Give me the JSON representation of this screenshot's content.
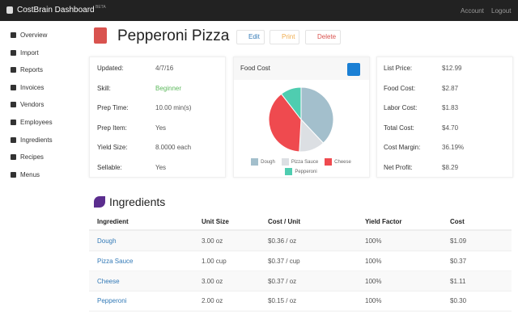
{
  "navbar": {
    "brand": "CostBrain Dashboard",
    "badge": "BETA",
    "links": [
      "Account",
      "Logout"
    ]
  },
  "sidebar": [
    "Overview",
    "Import",
    "Reports",
    "Invoices",
    "Vendors",
    "Employees",
    "Ingredients",
    "Recipes",
    "Menus"
  ],
  "header": {
    "title": "Pepperoni Pizza",
    "actions": [
      "Edit",
      "Print",
      "Delete"
    ]
  },
  "details": [
    [
      "Updated:",
      "4/7/16"
    ],
    [
      "Skill:",
      "Beginner"
    ],
    [
      "Prep Time:",
      "10.00 min(s)"
    ],
    [
      "Prep Item:",
      "Yes"
    ],
    [
      "Yield Size:",
      "8.0000 each"
    ],
    [
      "Sellable:",
      "Yes"
    ]
  ],
  "food_cost_chart": {
    "type": "pie",
    "title": "Food Cost",
    "categories": [
      "Dough",
      "Pizza Sauce",
      "Cheese",
      "Pepperoni"
    ],
    "values": [
      1.09,
      0.37,
      1.11,
      0.3
    ],
    "colors": [
      "#a3bfcc",
      "#dcdfe3",
      "#ef4a4f",
      "#4fcdb0"
    ]
  },
  "costs": [
    [
      "List Price:",
      "$12.99"
    ],
    [
      "Food Cost:",
      "$2.87"
    ],
    [
      "Labor Cost:",
      "$1.83"
    ],
    [
      "Total Cost:",
      "$4.70"
    ],
    [
      "Cost Margin:",
      "36.19%"
    ],
    [
      "Net Profit:",
      "$8.29"
    ]
  ],
  "ingredients": {
    "title": "Ingredients",
    "columns": [
      "Ingredient",
      "Unit Size",
      "Cost / Unit",
      "Yield Factor",
      "Cost"
    ],
    "rows": [
      [
        "Dough",
        "3.00 oz",
        "$0.36 / oz",
        "100%",
        "$1.09"
      ],
      [
        "Pizza Sauce",
        "1.00 cup",
        "$0.37 / cup",
        "100%",
        "$0.37"
      ],
      [
        "Cheese",
        "3.00 oz",
        "$0.37 / oz",
        "100%",
        "$1.11"
      ],
      [
        "Pepperoni",
        "2.00 oz",
        "$0.15 / oz",
        "100%",
        "$0.30"
      ]
    ]
  }
}
